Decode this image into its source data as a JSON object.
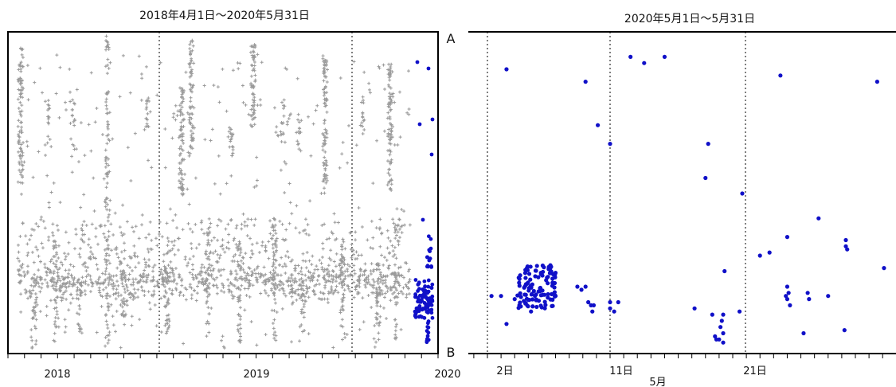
{
  "chart_data": [
    {
      "type": "scatter",
      "title": "2018年4月1日～2020年5月31日",
      "xlabel": "",
      "ylabel": "",
      "x_ticks": [
        "2018",
        "2019",
        "2020"
      ],
      "x_range": [
        "2018-04-01",
        "2020-05-31"
      ],
      "y_range_labels": {
        "top": "A",
        "bottom": "B"
      },
      "grid": "vertical dotted lines at year boundaries",
      "series": [
        {
          "color": "#9a9a9a",
          "marker": "+",
          "period": [
            "2018-04-01",
            "2020-04-30"
          ]
        },
        {
          "color": "#1010c8",
          "marker": "dot",
          "period": [
            "2020-05-01",
            "2020-05-31"
          ]
        }
      ]
    },
    {
      "type": "scatter",
      "title": "2020年5月1日～5月31日",
      "xlabel": "5月",
      "ylabel": "",
      "x_ticks": [
        "2日",
        "11日",
        "21日"
      ],
      "x_range": [
        "2020-05-01",
        "2020-05-31"
      ],
      "grid": "vertical dotted lines at 2日, 11日, 21日",
      "series": [
        {
          "color": "#1010c8",
          "marker": "dot",
          "points_day_pos": [
            [
              3.4,
              0.08
            ],
            [
              4.9,
              0.26
            ],
            [
              5.2,
              0.12
            ],
            [
              3.4,
              0.9
            ],
            [
              9.2,
              0.86
            ],
            [
              10.1,
              0.72
            ],
            [
              11.0,
              0.66
            ],
            [
              12.5,
              0.94
            ],
            [
              13.5,
              0.92
            ],
            [
              15.0,
              0.94
            ],
            [
              18.0,
              0.55
            ],
            [
              18.2,
              0.66
            ],
            [
              18.8,
              0.03
            ],
            [
              19.4,
              0.25
            ],
            [
              20.7,
              0.5
            ],
            [
              23.5,
              0.88
            ],
            [
              26.3,
              0.42
            ],
            [
              28.2,
              0.06
            ],
            [
              30.6,
              0.86
            ],
            [
              31.1,
              0.26
            ]
          ]
        }
      ]
    }
  ]
}
